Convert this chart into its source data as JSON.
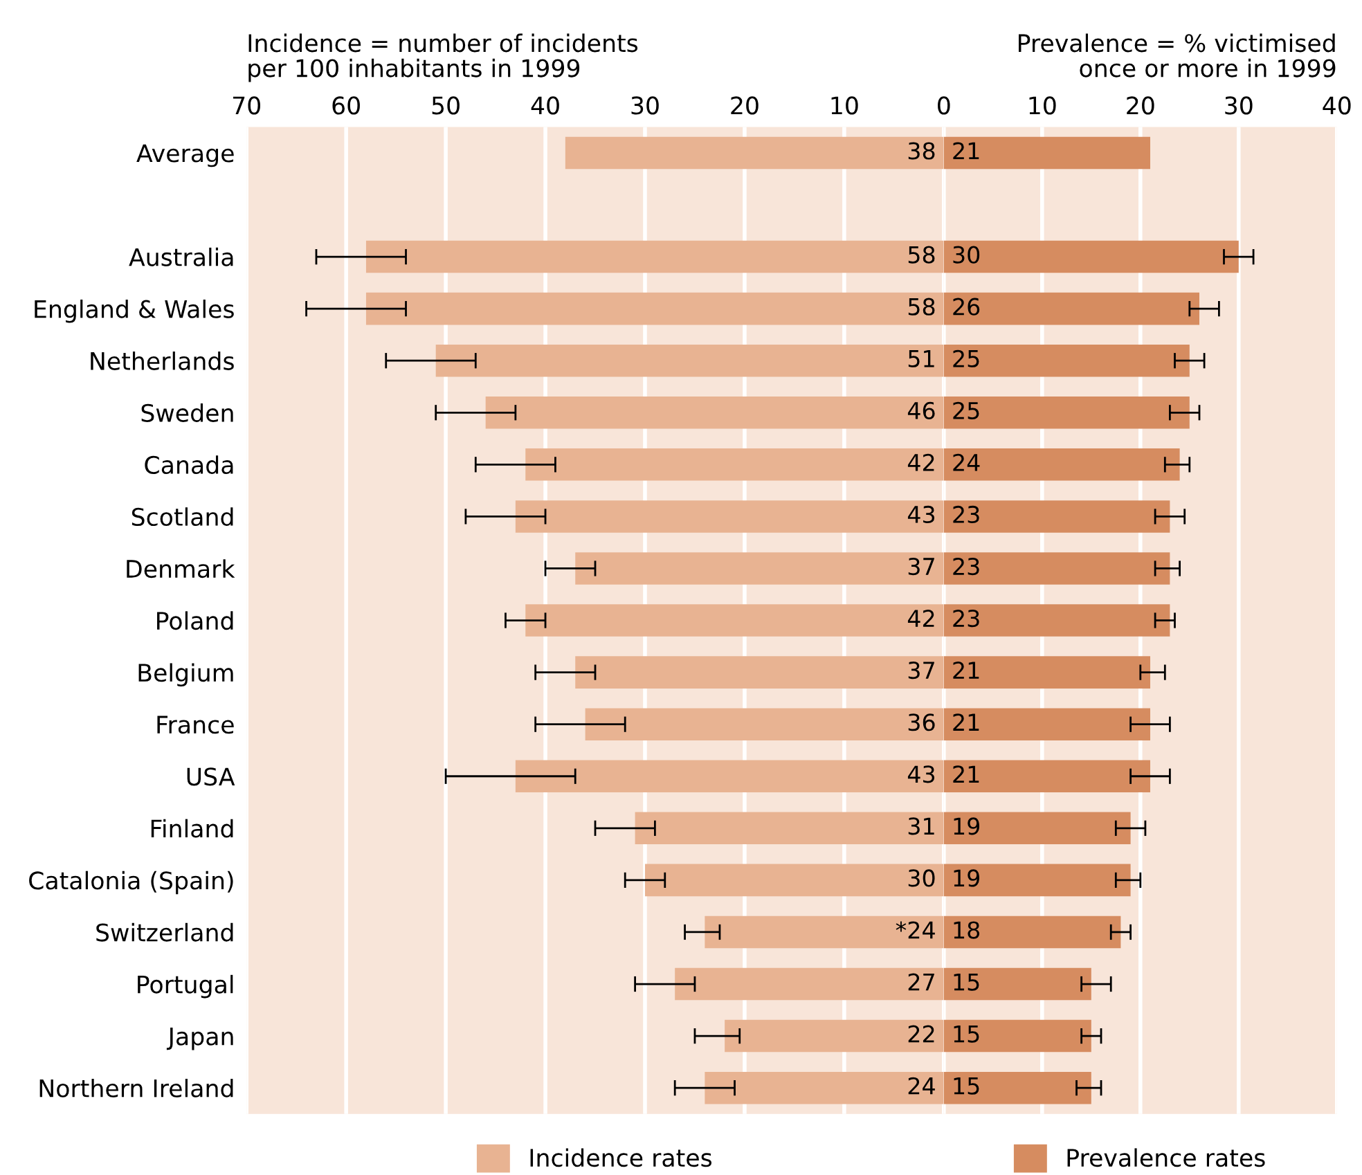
{
  "chart_data": [
    {
      "type": "bar",
      "orientation": "horizontal",
      "title": "Incidence = number of incidents\nper 100 inhabitants in 1999",
      "categories": [
        "Average",
        null,
        "Australia",
        "England & Wales",
        "Netherlands",
        "Sweden",
        "Canada",
        "Scotland",
        "Denmark",
        "Poland",
        "Belgium",
        "France",
        "USA",
        "Finland",
        "Catalonia (Spain)",
        "Switzerland",
        "Portugal",
        "Japan",
        "Northern Ireland"
      ],
      "series": [
        {
          "name": "Incidence rates",
          "color": "#e8b392",
          "values": [
            38,
            null,
            58,
            58,
            51,
            46,
            42,
            43,
            37,
            42,
            37,
            36,
            43,
            31,
            30,
            24,
            27,
            22,
            24
          ],
          "value_labels": [
            "38",
            null,
            "58",
            "58",
            "51",
            "46",
            "42",
            "43",
            "37",
            "42",
            "37",
            "36",
            "43",
            "31",
            "30",
            "*24",
            "27",
            "22",
            "24"
          ],
          "errors": [
            null,
            null,
            [
              54,
              63
            ],
            [
              54,
              64
            ],
            [
              47,
              56
            ],
            [
              43,
              51
            ],
            [
              39,
              47
            ],
            [
              40,
              48
            ],
            [
              35,
              40
            ],
            [
              40,
              44
            ],
            [
              35,
              41
            ],
            [
              32,
              41
            ],
            [
              37,
              50
            ],
            [
              29,
              35
            ],
            [
              28,
              32
            ],
            [
              22.5,
              26
            ],
            [
              25,
              31
            ],
            [
              20.5,
              25
            ],
            [
              21,
              27
            ]
          ]
        }
      ],
      "xlim": [
        70,
        0
      ],
      "xticks": [
        70,
        60,
        50,
        40,
        30,
        20,
        10,
        0
      ],
      "grid": "x",
      "legend": "bottom"
    },
    {
      "type": "bar",
      "orientation": "horizontal",
      "title": "Prevalence = % victimised\nonce or more in 1999",
      "series": [
        {
          "name": "Prevalence rates",
          "color": "#d68c60",
          "values": [
            21,
            null,
            30,
            26,
            25,
            25,
            24,
            23,
            23,
            23,
            21,
            21,
            21,
            19,
            19,
            18,
            15,
            15,
            15
          ],
          "errors": [
            null,
            null,
            [
              28.5,
              31.5
            ],
            [
              25,
              28
            ],
            [
              23.5,
              26.5
            ],
            [
              23,
              26
            ],
            [
              22.5,
              25
            ],
            [
              21.5,
              24.5
            ],
            [
              21.5,
              24
            ],
            [
              21.5,
              23.5
            ],
            [
              20,
              22.5
            ],
            [
              19,
              23
            ],
            [
              19,
              23
            ],
            [
              17.5,
              20.5
            ],
            [
              17.5,
              20
            ],
            [
              17,
              19
            ],
            [
              14,
              17
            ],
            [
              14,
              16
            ],
            [
              13.5,
              16
            ]
          ]
        }
      ],
      "data_labels": true,
      "xlim": [
        0,
        40
      ],
      "xticks": [
        {
          "value": 0,
          "label": null
        },
        10,
        20,
        30,
        40
      ],
      "grid": "x",
      "legend": "bottom",
      "tick_labels": "x"
    }
  ]
}
